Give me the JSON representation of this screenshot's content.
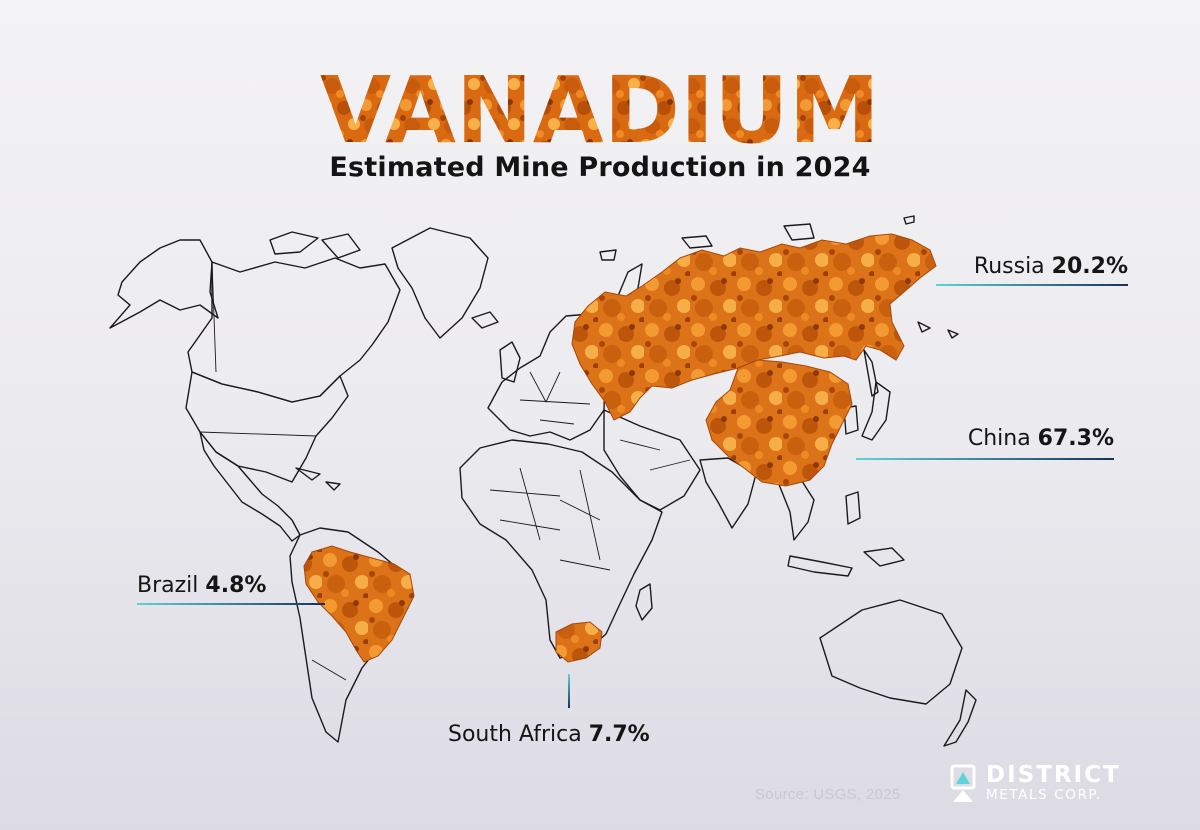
{
  "header": {
    "title": "VANADIUM",
    "subtitle": "Estimated Mine Production in 2024"
  },
  "producers": [
    {
      "country": "Russia",
      "share": "20.2%"
    },
    {
      "country": "China",
      "share": "67.3%"
    },
    {
      "country": "Brazil",
      "share": "4.8%"
    },
    {
      "country": "South Africa",
      "share": "7.7%"
    }
  ],
  "footer": {
    "source": "Source:  USGS, 2025",
    "logo_name": "DISTRICT",
    "logo_sub": "METALS CORP."
  },
  "colors": {
    "highlight": "#e0781c",
    "outline": "#1a1a1a",
    "leader_start": "#5fd3d8",
    "leader_end": "#16325c"
  }
}
